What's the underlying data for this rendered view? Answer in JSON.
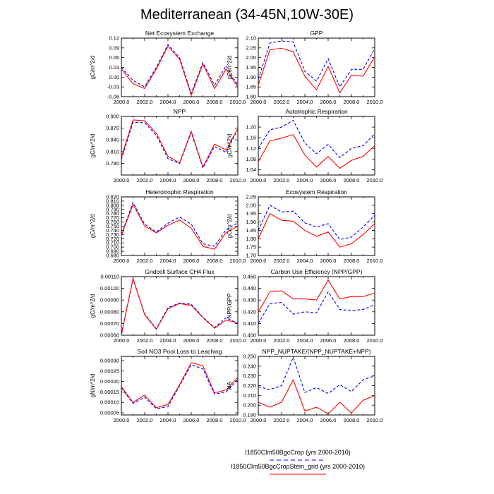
{
  "figure": {
    "title": "Mediterranean (34-45N,10W-30E)"
  },
  "legend": [
    {
      "label": "I1850Clm50BgcCrop (yrs 2000-2010)",
      "color": "#0000ff",
      "dash": true
    },
    {
      "label": "I1850Clm50BgcCropStein_grid (yrs 2000-2010)",
      "color": "#ff0000",
      "dash": false
    }
  ],
  "chart_data": [
    {
      "type": "line",
      "title": "Net Ecosystem Exchange",
      "ylabel": "gC/m^2/d",
      "xlim": [
        2000,
        2010
      ],
      "ylim": [
        -0.06,
        0.12
      ],
      "xticks": [
        "2000.0",
        "2002.0",
        "2004.0",
        "2006.0",
        "2008.0",
        "2010.0"
      ],
      "yticks": [
        "-0.06",
        "-0.03",
        "0.00",
        "0.03",
        "0.06",
        "0.09",
        "0.12"
      ],
      "x": [
        2000,
        2001,
        2002,
        2003,
        2004,
        2005,
        2006,
        2007,
        2008,
        2009,
        2010
      ],
      "series": [
        {
          "color": "#0000ff",
          "dash": true,
          "values": [
            0.03,
            -0.01,
            -0.03,
            0.03,
            0.1,
            0.06,
            -0.05,
            0.045,
            -0.025,
            0.035,
            -0.025
          ]
        },
        {
          "color": "#ff0000",
          "dash": false,
          "values": [
            0.025,
            -0.02,
            -0.035,
            0.025,
            0.095,
            0.055,
            -0.055,
            0.04,
            -0.035,
            0.025,
            -0.03
          ]
        }
      ]
    },
    {
      "type": "line",
      "title": "GPP",
      "ylabel": "gC/m^2/d",
      "xlim": [
        2000,
        2010
      ],
      "ylim": [
        1.8,
        2.1
      ],
      "xticks": [
        "2000.0",
        "2002.0",
        "2004.0",
        "2006.0",
        "2008.0",
        "2010.0"
      ],
      "yticks": [
        "1.80",
        "1.85",
        "1.90",
        "1.95",
        "2.00",
        "2.05",
        "2.10"
      ],
      "x": [
        2000,
        2001,
        2002,
        2003,
        2004,
        2005,
        2006,
        2007,
        2008,
        2009,
        2010
      ],
      "series": [
        {
          "color": "#0000ff",
          "dash": true,
          "values": [
            1.89,
            2.075,
            2.085,
            2.08,
            1.93,
            1.88,
            1.995,
            1.85,
            1.94,
            1.94,
            2.045
          ]
        },
        {
          "color": "#ff0000",
          "dash": false,
          "values": [
            1.86,
            2.04,
            2.048,
            2.03,
            1.905,
            1.835,
            1.955,
            1.82,
            1.91,
            1.905,
            2.005
          ]
        }
      ]
    },
    {
      "type": "line",
      "title": "NPP",
      "ylabel": "gC/m^2/d",
      "xlim": [
        2000,
        2010
      ],
      "ylim": [
        0.75,
        0.9
      ],
      "xticks": [
        "2000.0",
        "2002.0",
        "2004.0",
        "2006.0",
        "2008.0",
        "2010.0"
      ],
      "yticks": [
        "0.780",
        "0.810",
        "0.840",
        "0.870",
        "0.900"
      ],
      "x": [
        2000,
        2001,
        2002,
        2003,
        2004,
        2005,
        2006,
        2007,
        2008,
        2009,
        2010
      ],
      "series": [
        {
          "color": "#0000ff",
          "dash": true,
          "values": [
            0.79,
            0.885,
            0.884,
            0.852,
            0.792,
            0.779,
            0.859,
            0.768,
            0.823,
            0.808,
            0.868
          ]
        },
        {
          "color": "#ff0000",
          "dash": false,
          "values": [
            0.795,
            0.891,
            0.889,
            0.857,
            0.798,
            0.781,
            0.862,
            0.77,
            0.829,
            0.814,
            0.869
          ]
        }
      ]
    },
    {
      "type": "line",
      "title": "Autotrophic Respiration",
      "ylabel": "gC/m^2/d",
      "xlim": [
        2000,
        2010
      ],
      "ylim": [
        1.02,
        1.24
      ],
      "xticks": [
        "2000.0",
        "2002.0",
        "2004.0",
        "2006.0",
        "2008.0",
        "2010.0"
      ],
      "yticks": [
        "1.04",
        "1.08",
        "1.12",
        "1.16",
        "1.20"
      ],
      "x": [
        2000,
        2001,
        2002,
        2003,
        2004,
        2005,
        2006,
        2007,
        2008,
        2009,
        2010
      ],
      "series": [
        {
          "color": "#0000ff",
          "dash": true,
          "values": [
            1.12,
            1.19,
            1.2,
            1.225,
            1.14,
            1.1,
            1.135,
            1.085,
            1.12,
            1.13,
            1.175
          ]
        },
        {
          "color": "#ff0000",
          "dash": false,
          "values": [
            1.07,
            1.148,
            1.158,
            1.172,
            1.095,
            1.05,
            1.09,
            1.045,
            1.075,
            1.09,
            1.13
          ]
        }
      ]
    },
    {
      "type": "line",
      "title": "Heterotrophic Respiration",
      "ylabel": "gC/m^2/d",
      "xlim": [
        2000,
        2010
      ],
      "ylim": [
        0.68,
        0.82
      ],
      "xticks": [
        "2000.0",
        "2002.0",
        "2004.0",
        "2006.0",
        "2008.0",
        "2010.0"
      ],
      "yticks": [
        "0.680",
        "0.690",
        "0.700",
        "0.710",
        "0.720",
        "0.730",
        "0.740",
        "0.750",
        "0.760",
        "0.770",
        "0.780",
        "0.790",
        "0.800",
        "0.810",
        "0.820"
      ],
      "x": [
        2000,
        2001,
        2002,
        2003,
        2004,
        2005,
        2006,
        2007,
        2008,
        2009,
        2010
      ],
      "series": [
        {
          "color": "#0000ff",
          "dash": true,
          "values": [
            0.73,
            0.807,
            0.755,
            0.736,
            0.757,
            0.772,
            0.755,
            0.708,
            0.702,
            0.742,
            0.758
          ]
        },
        {
          "color": "#ff0000",
          "dash": false,
          "values": [
            0.728,
            0.802,
            0.75,
            0.734,
            0.752,
            0.765,
            0.745,
            0.702,
            0.695,
            0.735,
            0.75
          ]
        }
      ]
    },
    {
      "type": "line",
      "title": "Ecosystem Respiration",
      "ylabel": "gC/m^2/d",
      "xlim": [
        2000,
        2010
      ],
      "ylim": [
        1.7,
        2.05
      ],
      "xticks": [
        "2000.0",
        "2002.0",
        "2004.0",
        "2006.0",
        "2008.0",
        "2010.0"
      ],
      "yticks": [
        "1.70",
        "1.75",
        "1.80",
        "1.85",
        "1.90",
        "1.95",
        "2.00",
        "2.05"
      ],
      "x": [
        2000,
        2001,
        2002,
        2003,
        2004,
        2005,
        2006,
        2007,
        2008,
        2009,
        2010
      ],
      "series": [
        {
          "color": "#0000ff",
          "dash": true,
          "values": [
            1.85,
            2.0,
            1.96,
            1.965,
            1.895,
            1.87,
            1.89,
            1.795,
            1.81,
            1.87,
            1.94
          ]
        },
        {
          "color": "#ff0000",
          "dash": false,
          "values": [
            1.8,
            1.95,
            1.91,
            1.905,
            1.85,
            1.815,
            1.84,
            1.75,
            1.77,
            1.825,
            1.89
          ]
        }
      ]
    },
    {
      "type": "line",
      "title": "Gridcell Surface CH4 Flux",
      "ylabel": "gC/m^2/d",
      "xlim": [
        2000,
        2010
      ],
      "ylim": [
        0.0006,
        0.0011
      ],
      "xticks": [
        "2000.0",
        "2002.0",
        "2004.0",
        "2006.0",
        "2008.0",
        "2010.0"
      ],
      "yticks": [
        "0.00060",
        "0.00070",
        "0.00080",
        "0.00090",
        "0.00100",
        "0.00110"
      ],
      "x": [
        2000,
        2001,
        2002,
        2003,
        2004,
        2005,
        2006,
        2007,
        2008,
        2009,
        2010
      ],
      "series": [
        {
          "color": "#0000ff",
          "dash": true,
          "values": [
            0.00061,
            0.00108,
            0.00078,
            0.000655,
            0.000835,
            0.000875,
            0.000865,
            0.000755,
            0.000665,
            0.00075,
            0.0007
          ]
        },
        {
          "color": "#ff0000",
          "dash": false,
          "values": [
            0.0006,
            0.001085,
            0.000775,
            0.00065,
            0.000825,
            0.00087,
            0.000855,
            0.00075,
            0.00066,
            0.00073,
            0.000705
          ]
        }
      ]
    },
    {
      "type": "line",
      "title": "Carbon Use Efficiency (NPP/GPP)",
      "ylabel": "NPP/GPP",
      "xlim": [
        2000,
        2010
      ],
      "ylim": [
        0.4,
        0.45
      ],
      "xticks": [
        "2000.0",
        "2002.0",
        "2004.0",
        "2006.0",
        "2008.0",
        "2010.0"
      ],
      "yticks": [
        "0.400",
        "0.410",
        "0.420",
        "0.430",
        "0.440",
        "0.450"
      ],
      "x": [
        2000,
        2001,
        2002,
        2003,
        2004,
        2005,
        2006,
        2007,
        2008,
        2009,
        2010
      ],
      "series": [
        {
          "color": "#0000ff",
          "dash": true,
          "values": [
            0.41,
            0.427,
            0.428,
            0.418,
            0.42,
            0.419,
            0.437,
            0.422,
            0.421,
            0.422,
            0.426
          ]
        },
        {
          "color": "#ff0000",
          "dash": false,
          "values": [
            0.42,
            0.437,
            0.438,
            0.431,
            0.431,
            0.43,
            0.447,
            0.431,
            0.433,
            0.433,
            0.436
          ]
        }
      ]
    },
    {
      "type": "line",
      "title": "Soil NO3 Pool Loss to Leaching",
      "ylabel": "gN/m^2/d",
      "xlim": [
        2000,
        2010
      ],
      "ylim": [
        4e-05,
        0.00032
      ],
      "xticks": [
        "2000.0",
        "2002.0",
        "2004.0",
        "2006.0",
        "2008.0",
        "2010.0"
      ],
      "yticks": [
        "0.00005",
        "0.00010",
        "0.00015",
        "0.00020",
        "0.00025",
        "0.00030"
      ],
      "x": [
        2000,
        2001,
        2002,
        2003,
        2004,
        2005,
        2006,
        2007,
        2008,
        2009,
        2010
      ],
      "series": [
        {
          "color": "#0000ff",
          "dash": true,
          "values": [
            0.00017,
            9.5e-05,
            0.000125,
            7e-05,
            8e-05,
            0.00018,
            0.00028,
            0.00026,
            0.00014,
            0.00015,
            0.00021
          ]
        },
        {
          "color": "#ff0000",
          "dash": false,
          "values": [
            0.000175,
            0.0001,
            0.000135,
            7.5e-05,
            9e-05,
            0.000185,
            0.00029,
            0.000275,
            0.000145,
            0.00016,
            0.00022
          ]
        }
      ]
    },
    {
      "type": "line",
      "title": "NPP_NUPTAKE/(NPP_NUPTAKE+NPP)",
      "ylabel": "NA",
      "xlim": [
        2000,
        2010
      ],
      "ylim": [
        0.19,
        0.25
      ],
      "xticks": [
        "2000.0",
        "2002.0",
        "2004.0",
        "2006.0",
        "2008.0",
        "2010.0"
      ],
      "yticks": [
        "0.190",
        "0.200",
        "0.210",
        "0.220",
        "0.230",
        "0.240",
        "0.250"
      ],
      "x": [
        2000,
        2001,
        2002,
        2003,
        2004,
        2005,
        2006,
        2007,
        2008,
        2009,
        2010
      ],
      "series": [
        {
          "color": "#0000ff",
          "dash": true,
          "values": [
            0.219,
            0.216,
            0.22,
            0.249,
            0.213,
            0.218,
            0.212,
            0.221,
            0.214,
            0.226,
            0.23
          ]
        },
        {
          "color": "#ff0000",
          "dash": false,
          "values": [
            0.203,
            0.198,
            0.203,
            0.226,
            0.194,
            0.198,
            0.191,
            0.203,
            0.192,
            0.205,
            0.21
          ]
        }
      ]
    }
  ]
}
